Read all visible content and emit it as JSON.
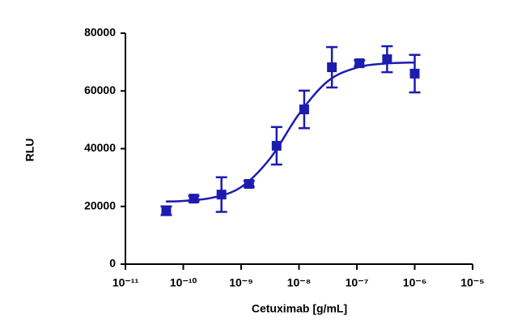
{
  "chart_data": {
    "type": "scatter",
    "y_label": "RLU",
    "x_label": "Cetuximab [g/mL]",
    "x_scale": "log",
    "color": "#1c1cb0",
    "x": [
      5.08e-11,
      1.52e-10,
      4.57e-10,
      1.37e-09,
      4.1e-09,
      1.23e-08,
      3.7e-08,
      1.11e-07,
      3.33e-07,
      1e-06
    ],
    "series": [
      {
        "values": [
          18500,
          22700,
          24100,
          27800,
          41000,
          53600,
          68200,
          69600,
          71000,
          66000
        ],
        "errors": [
          1500,
          1000,
          6000,
          1000,
          6500,
          6500,
          7000,
          1000,
          4500,
          6500
        ]
      }
    ],
    "curve": {
      "x": [
        5e-11,
        1e-10,
        3.16e-10,
        1e-09,
        3.16e-09,
        1e-08,
        3.16e-08,
        1e-07,
        3.16e-07,
        1e-06
      ],
      "values": [
        21700,
        21900,
        23000,
        26700,
        36600,
        52000,
        63400,
        68100,
        69500,
        69850
      ]
    },
    "xlim": [
      1e-11,
      1e-05
    ],
    "xticks": [
      {
        "value": 1e-11,
        "label": "10⁻¹¹"
      },
      {
        "value": 1e-10,
        "label": "10⁻¹⁰"
      },
      {
        "value": 1e-09,
        "label": "10⁻⁹"
      },
      {
        "value": 1e-08,
        "label": "10⁻⁸"
      },
      {
        "value": 1e-07,
        "label": "10⁻⁷"
      },
      {
        "value": 1e-06,
        "label": "10⁻⁶"
      },
      {
        "value": 1e-05,
        "label": "10⁻⁵"
      }
    ],
    "ylim": [
      0,
      80000
    ],
    "yticks": [
      0,
      20000,
      40000,
      60000,
      80000
    ]
  }
}
